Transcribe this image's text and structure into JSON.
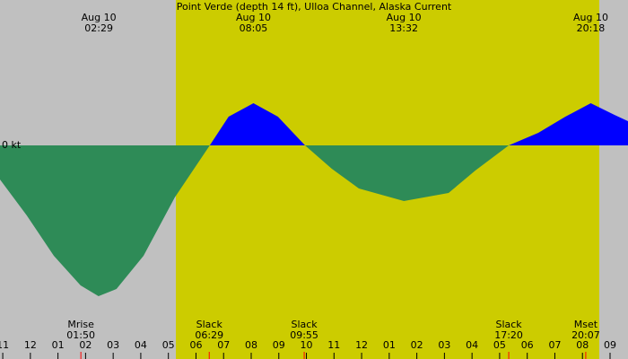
{
  "chart_data": {
    "type": "area",
    "title": "Point Verde (depth 14 ft), Ulloa Channel, Alaska Current",
    "y_label": "0 kt",
    "x": [
      -1.1,
      -0.13,
      0.85,
      1.82,
      2.47,
      3.12,
      4.1,
      5.23,
      6.5,
      7.18,
      8.08,
      8.97,
      9.95,
      10.92,
      11.9,
      13.53,
      15.15,
      16.12,
      17.33,
      18.4,
      19.38,
      20.3,
      21.16,
      21.65
    ],
    "values": [
      -0.76,
      -1.56,
      -2.46,
      -3.12,
      -3.36,
      -3.2,
      -2.46,
      -1.16,
      0,
      0.64,
      0.94,
      0.64,
      0,
      -0.52,
      -0.96,
      -1.24,
      -1.06,
      -0.56,
      0,
      0.28,
      0.64,
      0.94,
      0.68,
      0.54
    ],
    "flood_color": "#0000ff",
    "ebb_color": "#2e8b57",
    "night_color": "#c0c0c0",
    "day_color": "#cccc00",
    "daylight": [
      5.27,
      20.61
    ],
    "xlim": [
      -1.1,
      21.65
    ],
    "ylim": [
      -4.76,
      3.24
    ],
    "xticks": [
      {
        "value": -1,
        "label": "11"
      },
      {
        "value": 0,
        "label": "12"
      },
      {
        "value": 1,
        "label": "01"
      },
      {
        "value": 2,
        "label": "02"
      },
      {
        "value": 3,
        "label": "03"
      },
      {
        "value": 4,
        "label": "04"
      },
      {
        "value": 5,
        "label": "05"
      },
      {
        "value": 6,
        "label": "06"
      },
      {
        "value": 7,
        "label": "07"
      },
      {
        "value": 8,
        "label": "08"
      },
      {
        "value": 9,
        "label": "09"
      },
      10,
      11,
      {
        "value": 12,
        "label": "12"
      },
      {
        "value": 13,
        "label": "01"
      },
      {
        "value": 14,
        "label": "02"
      },
      {
        "value": 15,
        "label": "03"
      },
      {
        "value": 16,
        "label": "04"
      },
      {
        "value": 17,
        "label": "05"
      },
      {
        "value": 18,
        "label": "06"
      },
      {
        "value": 19,
        "label": "07"
      },
      {
        "value": 20,
        "label": "08"
      },
      {
        "value": 21,
        "label": "09"
      }
    ],
    "peaks": {
      "x": [
        2.48,
        8.08,
        13.53,
        20.3
      ],
      "dates": [
        "Aug 10",
        "Aug 10",
        "Aug 10",
        "Aug 10"
      ],
      "times": [
        "02:29",
        "08:05",
        "13:32",
        "20:18"
      ]
    },
    "events": {
      "x": [
        1.83,
        6.48,
        9.92,
        17.33,
        20.12
      ],
      "names": [
        "Mrise",
        "Slack",
        "Slack",
        "Slack",
        "Mset"
      ],
      "times": [
        "01:50",
        "06:29",
        "09:55",
        "17:20",
        "20:07"
      ]
    }
  }
}
